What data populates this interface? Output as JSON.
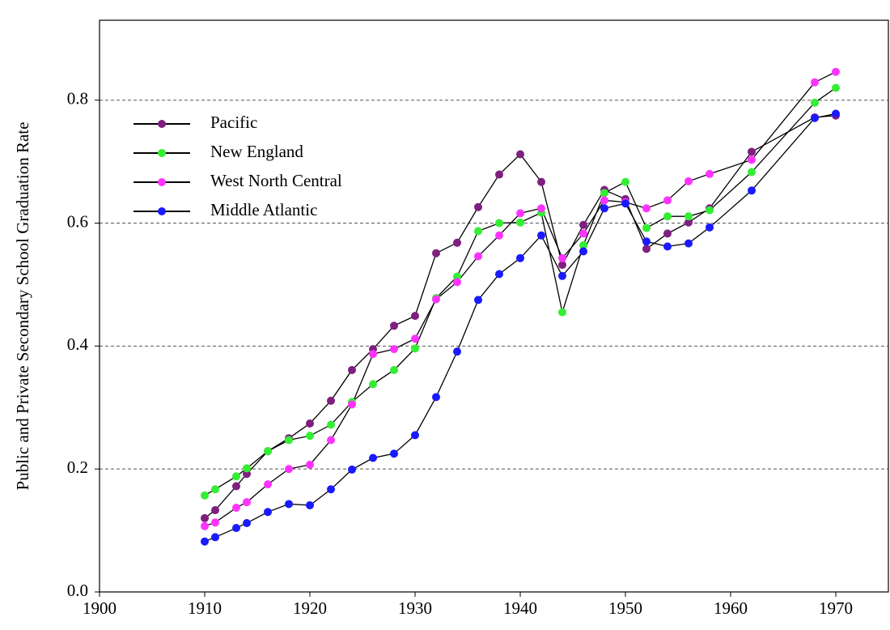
{
  "chart_data": {
    "type": "line",
    "y_label": "Public and Private Secondary School Graduation Rate",
    "x": [
      1910,
      1911,
      1913,
      1914,
      1916,
      1918,
      1920,
      1922,
      1924,
      1926,
      1928,
      1930,
      1932,
      1934,
      1936,
      1938,
      1940,
      1942,
      1944,
      1946,
      1948,
      1950,
      1952,
      1954,
      1956,
      1958,
      1962,
      1968,
      1970
    ],
    "series": [
      {
        "name": "Pacific",
        "color": "#7f1f7f",
        "values": [
          0.12,
          0.133,
          0.172,
          0.192,
          0.229,
          0.25,
          0.274,
          0.311,
          0.361,
          0.395,
          0.433,
          0.449,
          0.551,
          0.568,
          0.626,
          0.679,
          0.712,
          0.667,
          0.532,
          0.597,
          0.654,
          0.639,
          0.558,
          0.583,
          0.601,
          0.624,
          0.716,
          0.772,
          0.775
        ]
      },
      {
        "name": "New England",
        "color": "#33ee33",
        "values": [
          0.157,
          0.167,
          0.188,
          0.201,
          0.229,
          0.247,
          0.254,
          0.272,
          0.309,
          0.338,
          0.361,
          0.396,
          0.478,
          0.513,
          0.587,
          0.6,
          0.601,
          0.617,
          0.455,
          0.564,
          0.649,
          0.667,
          0.592,
          0.611,
          0.611,
          0.621,
          0.683,
          0.796,
          0.82
        ]
      },
      {
        "name": "West North Central",
        "color": "#ff33ff",
        "values": [
          0.107,
          0.113,
          0.137,
          0.146,
          0.175,
          0.2,
          0.207,
          0.247,
          0.305,
          0.387,
          0.395,
          0.412,
          0.476,
          0.504,
          0.546,
          0.58,
          0.616,
          0.624,
          0.543,
          0.583,
          0.637,
          0.634,
          0.624,
          0.637,
          0.668,
          0.68,
          0.703,
          0.829,
          0.846
        ]
      },
      {
        "name": "Middle Atlantic",
        "color": "#1a1aff",
        "values": [
          0.082,
          0.089,
          0.104,
          0.112,
          0.13,
          0.143,
          0.141,
          0.167,
          0.199,
          0.218,
          0.225,
          0.255,
          0.317,
          0.391,
          0.475,
          0.517,
          0.543,
          0.58,
          0.514,
          0.554,
          0.624,
          0.632,
          0.57,
          0.562,
          0.567,
          0.593,
          0.653,
          0.771,
          0.778
        ]
      }
    ],
    "xlim": [
      1900,
      1975
    ],
    "xticks": [
      1900,
      1910,
      1920,
      1930,
      1940,
      1950,
      1960,
      1970
    ],
    "ylim": [
      0,
      0.93
    ],
    "yticks": [
      {
        "value": 0,
        "label": "0.0"
      },
      0.2,
      0.4,
      0.6,
      0.8
    ],
    "grid": true,
    "legend": "upper-left"
  }
}
